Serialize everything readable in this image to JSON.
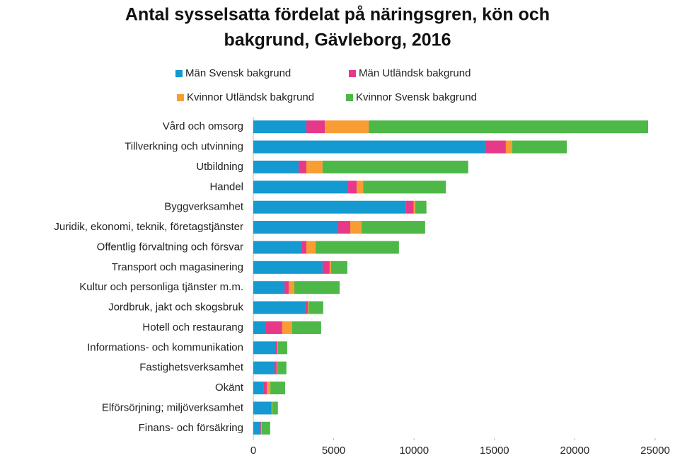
{
  "chart_data": {
    "type": "bar",
    "orientation": "horizontal",
    "stacked": true,
    "title": "Antal sysselsatta fördelat på näringsgren, kön och bakgrund, Gävleborg, 2016",
    "categories": [
      "Vård och omsorg",
      "Tillverkning och utvinning",
      "Utbildning",
      "Handel",
      "Byggverksamhet",
      "Juridik, ekonomi, teknik, företagstjänster",
      "Offentlig förvaltning och försvar",
      "Transport och magasinering",
      "Kultur och personliga tjänster m.m.",
      "Jordbruk, jakt och skogsbruk",
      "Hotell och restaurang",
      "Informations- och kommunikation",
      "Fastighetsverksamhet",
      "Okänt",
      "Elförsörjning; miljöverksamhet",
      "Finans- och försäkring"
    ],
    "series": [
      {
        "name": "Män Svensk bakgrund",
        "color": "#1499d0",
        "values": [
          3300,
          14430,
          2820,
          5900,
          9500,
          5280,
          2990,
          4310,
          1940,
          3260,
          790,
          1410,
          1320,
          620,
          1100,
          440
        ]
      },
      {
        "name": "Män Utländsk bakgrund",
        "color": "#e8388a",
        "values": [
          1150,
          1280,
          480,
          530,
          480,
          750,
          310,
          440,
          260,
          130,
          1010,
          90,
          130,
          220,
          40,
          40
        ]
      },
      {
        "name": "Kvinnor Utländsk bakgrund",
        "color": "#f79d34",
        "values": [
          2730,
          400,
          1010,
          400,
          90,
          700,
          570,
          90,
          350,
          40,
          620,
          40,
          40,
          220,
          40,
          40
        ]
      },
      {
        "name": "Kvinnor Svensk bakgrund",
        "color": "#4db848",
        "values": [
          17380,
          3390,
          9060,
          5150,
          700,
          3960,
          5190,
          1010,
          2820,
          920,
          1800,
          570,
          570,
          920,
          350,
          530
        ]
      }
    ],
    "xlim": [
      0,
      25000
    ],
    "xticks": [
      0,
      5000,
      10000,
      15000,
      20000,
      25000
    ],
    "grid": false,
    "legend": "top"
  }
}
